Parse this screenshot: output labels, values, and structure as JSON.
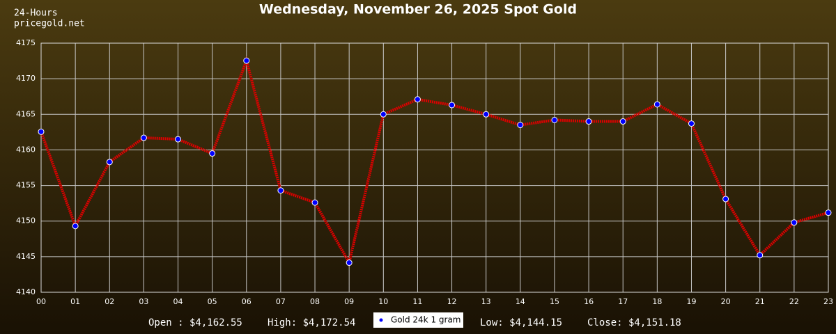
{
  "chart_data": {
    "type": "line",
    "title": "Wednesday, November 26, 2025 Spot Gold",
    "subtitle_lines": [
      "24-Hours",
      "pricegold.net"
    ],
    "categories": [
      "00",
      "01",
      "02",
      "03",
      "04",
      "05",
      "06",
      "07",
      "08",
      "09",
      "10",
      "11",
      "12",
      "13",
      "14",
      "15",
      "16",
      "17",
      "18",
      "19",
      "20",
      "21",
      "22",
      "23"
    ],
    "series": [
      {
        "name": "Gold 24k 1 gram",
        "color": "#dd0000",
        "marker_color": "#0000ff",
        "values": [
          4162.55,
          4149.3,
          4158.3,
          4161.7,
          4161.5,
          4159.5,
          4172.54,
          4154.3,
          4152.6,
          4144.15,
          4165.0,
          4167.1,
          4166.3,
          4165.0,
          4163.5,
          4164.2,
          4164.0,
          4164.0,
          4166.4,
          4163.7,
          4153.1,
          4145.2,
          4149.8,
          4151.18
        ]
      }
    ],
    "ylim": [
      4140,
      4175
    ],
    "yticks": [
      4140,
      4145,
      4150,
      4155,
      4160,
      4165,
      4170,
      4175
    ],
    "grid": true,
    "summary": [
      "Open : $4,162.55",
      "High: $4,172.54",
      "Low: $4,144.15",
      "Close: $4,151.18"
    ]
  }
}
